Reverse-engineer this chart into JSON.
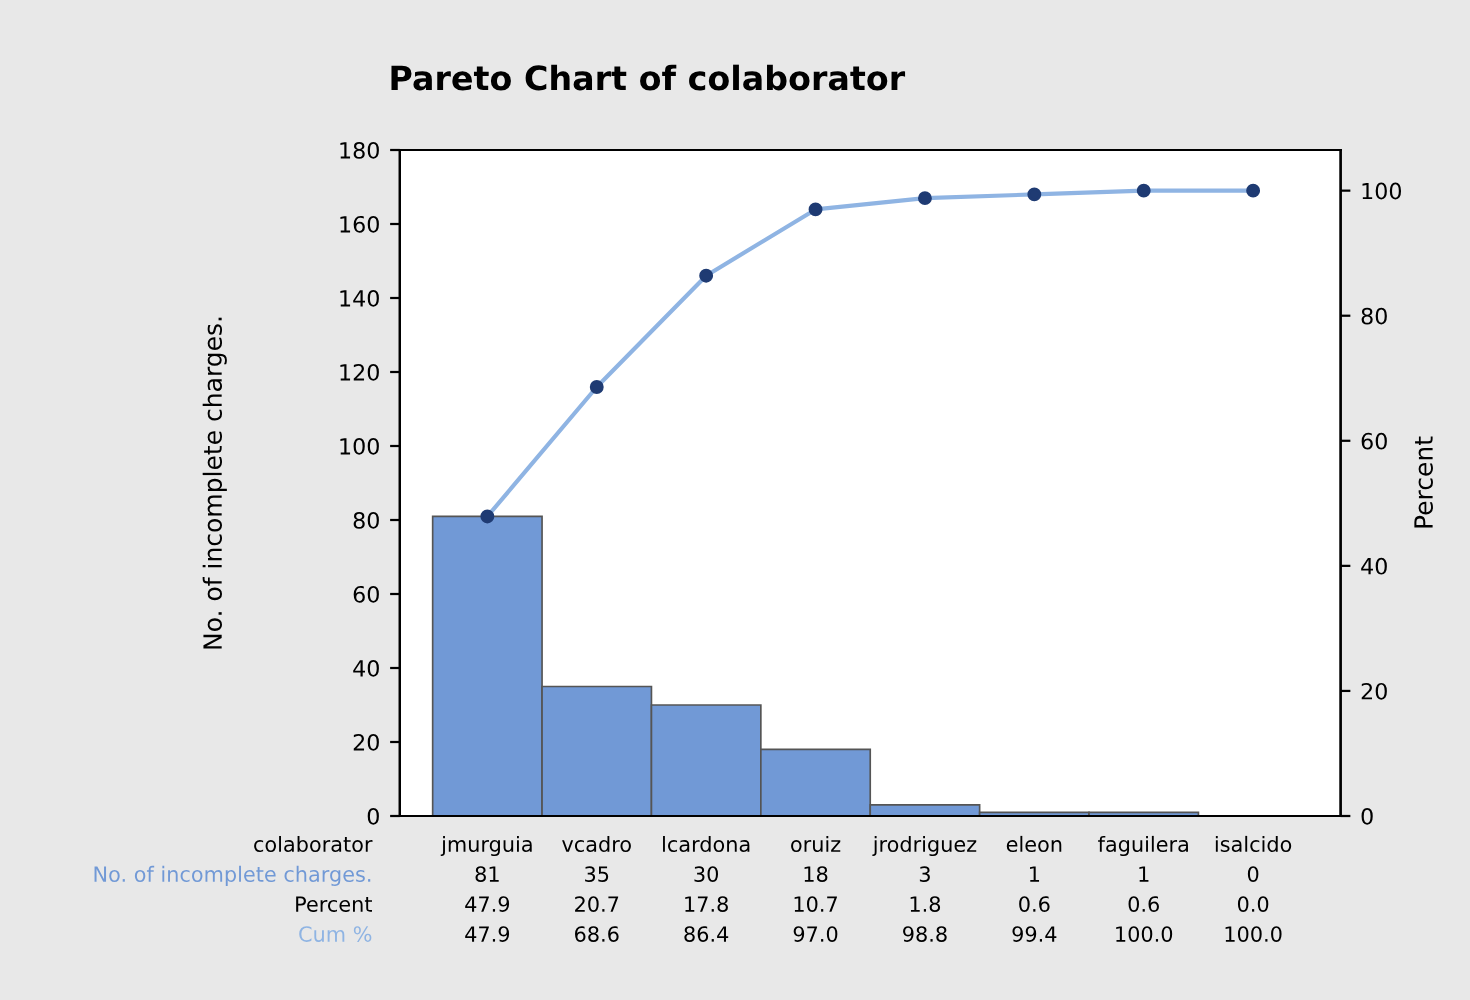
{
  "chart_data": {
    "type": "bar",
    "title": "Pareto Chart of colaborator",
    "xlabel": "colaborator",
    "ylabel": "No. of incomplete charges.",
    "y2label": "Percent",
    "categories": [
      "jmurguia",
      "vcadro",
      "lcardona",
      "oruiz",
      "jrodriguez",
      "eleon",
      "faguilera",
      "isalcido"
    ],
    "series": [
      {
        "name": "No. of incomplete charges.",
        "color": "#7199d6",
        "values": [
          81,
          35,
          30,
          18,
          3,
          1,
          1,
          0
        ]
      },
      {
        "name": "Cum %",
        "type": "line",
        "axis": "y2",
        "color": "#8fb4e3",
        "values": [
          47.9,
          68.6,
          86.4,
          97.0,
          98.8,
          99.4,
          100.0,
          100.0
        ],
        "value_labels": [
          "47.9",
          "68.6",
          "86.4",
          "97.0",
          "98.8",
          "99.4",
          "100.0",
          "100.0"
        ]
      }
    ],
    "annotations": [
      "Percent",
      "47.9",
      "20.7",
      "17.8",
      "10.7",
      "1.8",
      "0.6",
      "0.6",
      "0.0"
    ],
    "data_labels": true,
    "marker": "circle",
    "line_style": "solid",
    "ylim": [
      0,
      180
    ],
    "yticks": [
      0,
      20,
      40,
      60,
      80,
      100,
      120,
      140,
      160,
      180
    ],
    "y2lim": [
      0,
      106.5
    ],
    "y2ticks": [
      0,
      20,
      40,
      60,
      80,
      100
    ],
    "grid": false,
    "legend": false
  }
}
